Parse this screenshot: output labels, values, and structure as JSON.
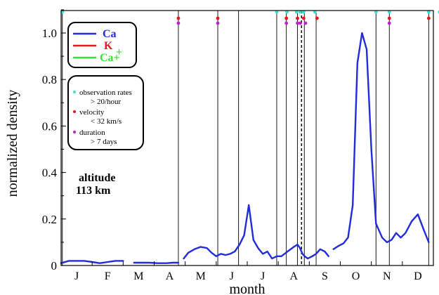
{
  "chart_data": {
    "type": "line",
    "xlabel": "month",
    "ylabel": "normalized density",
    "xlim": [
      0,
      12
    ],
    "ylim": [
      0,
      1.1
    ],
    "months": [
      "J",
      "F",
      "M",
      "A",
      "M",
      "J",
      "J",
      "A",
      "S",
      "O",
      "N",
      "D"
    ],
    "yticks": [
      0,
      0.2,
      0.4,
      0.6,
      0.8,
      1.0
    ],
    "ytick_labels": [
      "0",
      "0.2",
      "0.4",
      "0.6",
      "0.8",
      "1.0"
    ],
    "legend": {
      "placement": "top-left",
      "entries": [
        {
          "label": "Ca",
          "color": "#1f2bdc"
        },
        {
          "label": "K",
          "color": "#e8141e"
        },
        {
          "label": "Ca+",
          "color": "#2ee82e"
        }
      ]
    },
    "criteria": {
      "items": [
        {
          "symbol_color": "#40e0c8",
          "line1": "observation rates",
          "line2": "> 20/hour"
        },
        {
          "symbol_color": "#e8141e",
          "line1": "velocity",
          "line2": "< 32 km/s"
        },
        {
          "symbol_color": "#c020d0",
          "line1": "duration",
          "line2": "> 7 days"
        }
      ]
    },
    "annotation": {
      "line1": "altitude",
      "line2": "113 km"
    },
    "event_lines": [
      0.04,
      3.78,
      5.05,
      5.72,
      6.95,
      7.26,
      7.62,
      7.84,
      8.22,
      10.15,
      10.58,
      11.85,
      12.2
    ],
    "dashed_event_line": 7.75,
    "markers": {
      "cyan": [
        0.04,
        6.95,
        7.28,
        7.82,
        8.18,
        7.59,
        7.71,
        10.15,
        10.58,
        11.85,
        12.2
      ],
      "red": [
        3.78,
        5.05,
        7.26,
        7.62,
        7.82,
        8.25,
        10.58,
        11.85
      ],
      "magenta": [
        3.78,
        5.05,
        7.26,
        7.62,
        7.71,
        7.88,
        10.58
      ]
    },
    "series": [
      {
        "name": "Ca",
        "color": "#1f2bdc",
        "segments": [
          {
            "x": [
              0.0,
              0.25,
              0.5,
              0.75,
              1.0,
              1.25,
              1.5,
              1.75,
              2.0
            ],
            "y": [
              0.01,
              0.02,
              0.02,
              0.02,
              0.015,
              0.01,
              0.015,
              0.02,
              0.02
            ]
          },
          {
            "x": [
              2.35,
              2.6,
              2.85,
              3.1,
              3.4,
              3.6,
              3.78
            ],
            "y": [
              0.012,
              0.012,
              0.012,
              0.01,
              0.01,
              0.012,
              0.012
            ]
          },
          {
            "x": [
              3.95,
              4.1,
              4.3,
              4.5,
              4.7,
              4.85,
              5.0,
              5.15,
              5.3,
              5.45,
              5.6,
              5.75,
              5.9,
              6.05,
              6.2,
              6.35,
              6.5,
              6.65,
              6.8,
              6.95,
              7.1,
              7.3,
              7.5,
              7.62,
              7.7,
              7.78,
              7.85,
              7.95,
              8.1,
              8.22,
              8.35,
              8.5,
              8.62
            ],
            "y": [
              0.03,
              0.055,
              0.07,
              0.08,
              0.075,
              0.055,
              0.04,
              0.05,
              0.045,
              0.05,
              0.06,
              0.09,
              0.13,
              0.26,
              0.11,
              0.075,
              0.05,
              0.06,
              0.03,
              0.04,
              0.04,
              0.06,
              0.08,
              0.09,
              0.075,
              0.05,
              0.04,
              0.03,
              0.04,
              0.05,
              0.07,
              0.06,
              0.04
            ]
          },
          {
            "x": [
              8.78,
              8.95,
              9.1,
              9.25,
              9.4,
              9.55,
              9.7,
              9.85,
              10.0,
              10.15
            ],
            "y": [
              0.07,
              0.085,
              0.095,
              0.12,
              0.26,
              0.87,
              1.0,
              0.93,
              0.5,
              0.18
            ]
          },
          {
            "x": [
              10.15,
              10.35,
              10.5,
              10.65,
              10.8,
              10.95,
              11.1,
              11.3,
              11.5,
              11.7,
              11.85
            ],
            "y": [
              0.18,
              0.12,
              0.1,
              0.11,
              0.14,
              0.12,
              0.14,
              0.19,
              0.22,
              0.15,
              0.1
            ]
          }
        ]
      }
    ]
  }
}
